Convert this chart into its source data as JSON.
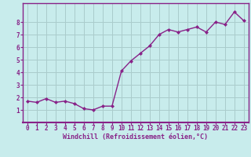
{
  "x": [
    0,
    1,
    2,
    3,
    4,
    5,
    6,
    7,
    8,
    9,
    10,
    11,
    12,
    13,
    14,
    15,
    16,
    17,
    18,
    19,
    20,
    21,
    22,
    23
  ],
  "y": [
    1.7,
    1.6,
    1.9,
    1.6,
    1.7,
    1.5,
    1.1,
    1.0,
    1.3,
    1.3,
    4.1,
    4.9,
    5.5,
    6.1,
    7.0,
    7.4,
    7.2,
    7.4,
    7.6,
    7.2,
    8.0,
    7.8,
    8.8,
    8.1
  ],
  "line_color": "#882288",
  "marker": "D",
  "marker_size": 2.0,
  "bg_color": "#c8ecec",
  "grid_color": "#aacccc",
  "xlabel": "Windchill (Refroidissement éolien,°C)",
  "xlabel_color": "#882288",
  "tick_color": "#882288",
  "axis_color": "#882288",
  "xlim": [
    -0.5,
    23.5
  ],
  "ylim": [
    0,
    9.5
  ],
  "yticks": [
    1,
    2,
    3,
    4,
    5,
    6,
    7,
    8
  ],
  "xticks": [
    0,
    1,
    2,
    3,
    4,
    5,
    6,
    7,
    8,
    9,
    10,
    11,
    12,
    13,
    14,
    15,
    16,
    17,
    18,
    19,
    20,
    21,
    22,
    23
  ],
  "tick_fontsize": 5.5,
  "xlabel_fontsize": 6.0,
  "linewidth": 1.0
}
